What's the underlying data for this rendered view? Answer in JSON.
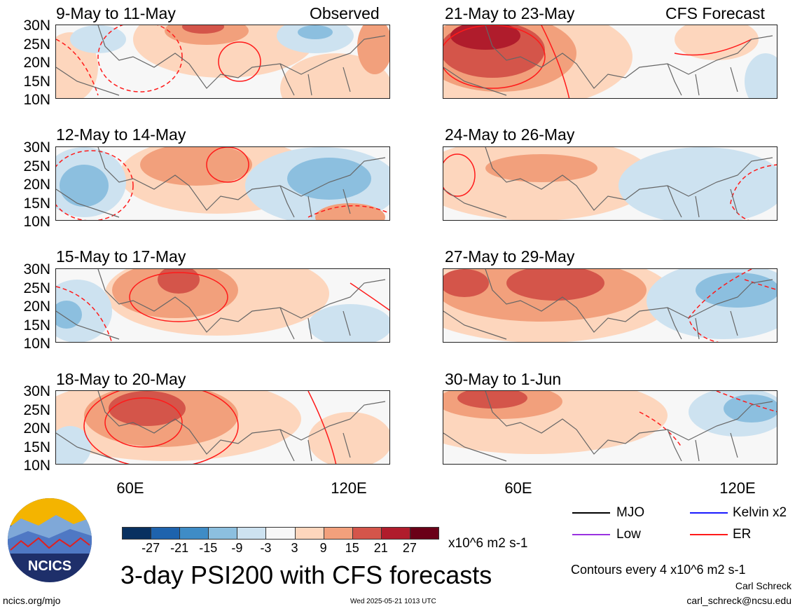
{
  "header": {
    "observed_label": "Observed",
    "forecast_label": "CFS Forecast"
  },
  "panels_left": [
    {
      "title": "9-May to 11-May"
    },
    {
      "title": "12-May to 14-May"
    },
    {
      "title": "15-May to 17-May"
    },
    {
      "title": "18-May to 20-May"
    }
  ],
  "panels_right": [
    {
      "title": "21-May to 23-May"
    },
    {
      "title": "24-May to 26-May"
    },
    {
      "title": "27-May to 29-May"
    },
    {
      "title": "30-May to 1-Jun"
    }
  ],
  "axes": {
    "lat_ticks": [
      "30N",
      "25N",
      "20N",
      "15N",
      "10N"
    ],
    "lon_ticks": [
      "60E",
      "120E"
    ]
  },
  "colorbar": {
    "labels": [
      "-27",
      "-21",
      "-15",
      "-9",
      "-3",
      "3",
      "9",
      "15",
      "21",
      "27"
    ],
    "colors": [
      "#083060",
      "#1e63ad",
      "#3f8cc6",
      "#8cbfdf",
      "#cde2f0",
      "#f7f7f7",
      "#fdd6bd",
      "#f2a07c",
      "#d4554a",
      "#b01c2c",
      "#6a0018"
    ],
    "unit": "x10^6 m2 s-1"
  },
  "legend": {
    "mjo": "MJO",
    "kelvin": "Kelvin x2",
    "low": "Low",
    "er": "ER",
    "colors": {
      "mjo": "#000000",
      "kelvin": "#1a1aff",
      "low": "#9932e0",
      "er": "#ff1a1a"
    }
  },
  "main_title": "3-day PSI200 with CFS forecasts",
  "contour_note": "Contours every 4 x10^6 m2 s-1",
  "author": "Carl Schreck",
  "email": "carl_schreck@ncsu.edu",
  "site": "ncics.org/mjo",
  "timestamp": "Wed 2025-05-21 1013 UTC",
  "logo": {
    "text": "NCICS"
  }
}
